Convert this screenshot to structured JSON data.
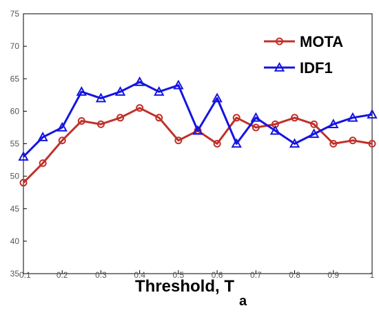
{
  "chart_data": {
    "type": "line",
    "x": [
      0.1,
      0.15,
      0.2,
      0.25,
      0.3,
      0.35,
      0.4,
      0.45,
      0.5,
      0.55,
      0.6,
      0.65,
      0.7,
      0.75,
      0.8,
      0.85,
      0.9,
      0.95,
      1.0
    ],
    "x_tick_labels": [
      "0.1",
      "0.2",
      "0.3",
      "0.4",
      "0.5",
      "0.6",
      "0.7",
      "0.8",
      "0.9",
      "1"
    ],
    "y_tick_labels": [
      "35",
      "40",
      "45",
      "50",
      "55",
      "60",
      "65",
      "70",
      "75"
    ],
    "xlim": [
      0.1,
      1.0
    ],
    "ylim": [
      35,
      75
    ],
    "xlabel": "Threshold, T",
    "xlabel_subscript": "a",
    "ylabel": "",
    "grid": false,
    "legend_position": "top-right",
    "series": [
      {
        "name": "MOTA",
        "color": "#c0302a",
        "marker": "circle",
        "values": [
          49,
          52,
          55.5,
          58.5,
          58,
          59,
          60.5,
          59,
          55.5,
          57,
          55,
          59,
          57.5,
          58,
          59,
          58,
          55,
          55.5,
          55
        ]
      },
      {
        "name": "IDF1",
        "color": "#1414e0",
        "marker": "triangle",
        "values": [
          53,
          56,
          57.5,
          63,
          62,
          63,
          64.5,
          63,
          64,
          57,
          62,
          55,
          59,
          57,
          55,
          56.5,
          58,
          59,
          59.5
        ]
      }
    ]
  }
}
